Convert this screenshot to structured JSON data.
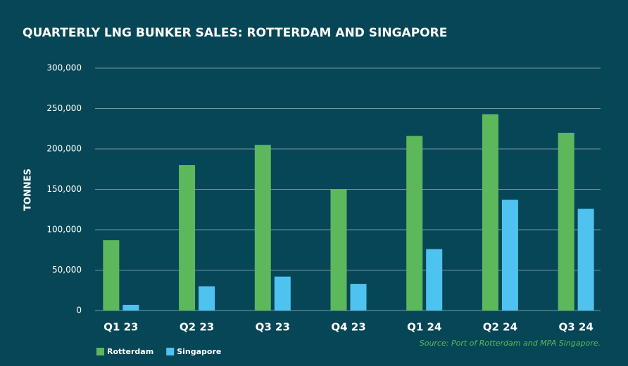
{
  "chart_data": {
    "type": "bar",
    "title": "QUARTERLY LNG BUNKER SALES: ROTTERDAM AND SINGAPORE",
    "y_label": "TONNES",
    "source": "Source: Port of Rotterdam and MPA Singapore.",
    "categories": [
      "Q1 23",
      "Q2 23",
      "Q3 23",
      "Q4 23",
      "Q1 24",
      "Q2 24",
      "Q3 24"
    ],
    "series": [
      {
        "name": "Rotterdam",
        "color": "#5db85c",
        "values": [
          87000,
          180000,
          205000,
          150000,
          216000,
          243000,
          220000
        ]
      },
      {
        "name": "Singapore",
        "color": "#4fc3f0",
        "values": [
          7000,
          30000,
          42000,
          33000,
          76000,
          137000,
          126000
        ]
      }
    ],
    "ylim": [
      0,
      300000
    ],
    "yticks": [
      0,
      {
        "value": 50000,
        "label": "50,000"
      },
      {
        "value": 100000,
        "label": "100,000"
      },
      {
        "value": 150000,
        "label": "150,000"
      },
      {
        "value": 200000,
        "label": "200,000"
      },
      {
        "value": 250000,
        "label": "250,000"
      },
      {
        "value": 300000,
        "label": "300,000"
      }
    ],
    "grid": true
  }
}
